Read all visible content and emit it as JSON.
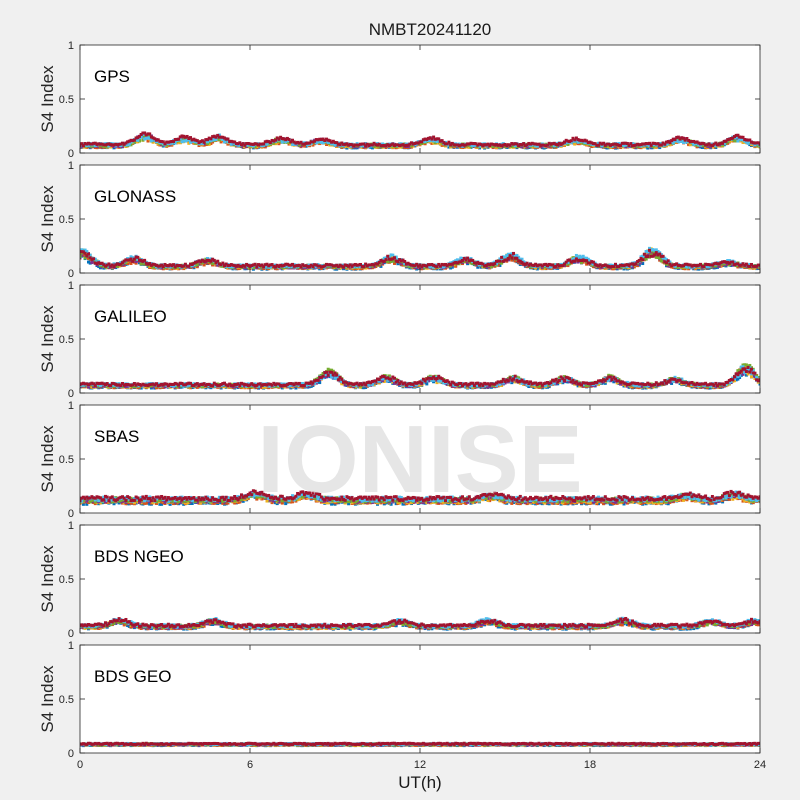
{
  "figure": {
    "title": "NMBT20241120",
    "xlabel": "UT(h)",
    "watermark": "IONISE",
    "background": "#f0f0f0",
    "axes_background": "#ffffff",
    "palette": [
      "#0072BD",
      "#D95319",
      "#EDB120",
      "#7E2F8E",
      "#77AC30",
      "#4DBEEE",
      "#A2142F"
    ]
  },
  "chart_data": [
    {
      "type": "scatter",
      "panel_label": "GPS",
      "ylabel": "S4 Index",
      "xlabel": "",
      "xlim": [
        0,
        24
      ],
      "ylim": [
        0,
        1
      ],
      "yticks": [
        0,
        0.5,
        1
      ],
      "ytick_labels": [
        "0",
        "0.5",
        "1"
      ],
      "xticks": [
        0,
        6,
        12,
        18,
        24
      ],
      "xtick_labels": [],
      "baseline": 0.07,
      "spread": 0.025,
      "peaks": [
        [
          2.3,
          0.17
        ],
        [
          3.7,
          0.14
        ],
        [
          4.9,
          0.15
        ],
        [
          7.1,
          0.13
        ],
        [
          8.5,
          0.12
        ],
        [
          12.4,
          0.13
        ],
        [
          17.5,
          0.12
        ],
        [
          21.2,
          0.13
        ],
        [
          23.2,
          0.15
        ]
      ],
      "grid": false
    },
    {
      "type": "scatter",
      "panel_label": "GLONASS",
      "ylabel": "S4 Index",
      "xlabel": "",
      "xlim": [
        0,
        24
      ],
      "ylim": [
        0,
        1
      ],
      "yticks": [
        0,
        0.5,
        1
      ],
      "ytick_labels": [
        "0",
        "0.5",
        "1"
      ],
      "xticks": [
        0,
        6,
        12,
        18,
        24
      ],
      "xtick_labels": [],
      "baseline": 0.06,
      "spread": 0.025,
      "peaks": [
        [
          0.1,
          0.2
        ],
        [
          1.9,
          0.14
        ],
        [
          4.5,
          0.12
        ],
        [
          11.0,
          0.15
        ],
        [
          13.6,
          0.13
        ],
        [
          15.2,
          0.17
        ],
        [
          17.6,
          0.15
        ],
        [
          20.2,
          0.22
        ],
        [
          22.9,
          0.1
        ]
      ],
      "grid": false
    },
    {
      "type": "scatter",
      "panel_label": "GALILEO",
      "ylabel": "S4 Index",
      "xlabel": "",
      "xlim": [
        0,
        24
      ],
      "ylim": [
        0,
        1
      ],
      "yticks": [
        0,
        0.5,
        1
      ],
      "ytick_labels": [
        "0",
        "0.5",
        "1"
      ],
      "xticks": [
        0,
        6,
        12,
        18,
        24
      ],
      "xtick_labels": [],
      "baseline": 0.07,
      "spread": 0.025,
      "peaks": [
        [
          8.8,
          0.21
        ],
        [
          10.8,
          0.15
        ],
        [
          12.5,
          0.15
        ],
        [
          15.3,
          0.14
        ],
        [
          17.1,
          0.14
        ],
        [
          18.7,
          0.15
        ],
        [
          21.0,
          0.13
        ],
        [
          23.5,
          0.26
        ]
      ],
      "grid": false
    },
    {
      "type": "scatter",
      "panel_label": "SBAS",
      "ylabel": "S4 Index",
      "xlabel": "",
      "xlim": [
        0,
        24
      ],
      "ylim": [
        0,
        1
      ],
      "yticks": [
        0,
        0.5,
        1
      ],
      "ytick_labels": [
        "0",
        "0.5",
        "1"
      ],
      "xticks": [
        0,
        6,
        12,
        18,
        24
      ],
      "xtick_labels": [],
      "baseline": 0.12,
      "spread": 0.04,
      "peaks": [
        [
          6.2,
          0.18
        ],
        [
          8.0,
          0.17
        ],
        [
          14.5,
          0.16
        ],
        [
          21.4,
          0.16
        ],
        [
          23.1,
          0.17
        ]
      ],
      "grid": false
    },
    {
      "type": "scatter",
      "panel_label": "BDS NGEO",
      "ylabel": "S4 Index",
      "xlabel": "",
      "xlim": [
        0,
        24
      ],
      "ylim": [
        0,
        1
      ],
      "yticks": [
        0,
        0.5,
        1
      ],
      "ytick_labels": [
        "0",
        "0.5",
        "1"
      ],
      "xticks": [
        0,
        6,
        12,
        18,
        24
      ],
      "xtick_labels": [],
      "baseline": 0.06,
      "spread": 0.025,
      "peaks": [
        [
          1.4,
          0.12
        ],
        [
          4.7,
          0.12
        ],
        [
          11.3,
          0.11
        ],
        [
          14.4,
          0.12
        ],
        [
          19.2,
          0.12
        ],
        [
          22.3,
          0.11
        ],
        [
          23.8,
          0.11
        ]
      ],
      "grid": false
    },
    {
      "type": "scatter",
      "panel_label": "BDS GEO",
      "ylabel": "S4 Index",
      "xlabel": "UT(h)",
      "xlim": [
        0,
        24
      ],
      "ylim": [
        0,
        1
      ],
      "yticks": [
        0,
        0.5,
        1
      ],
      "ytick_labels": [
        "0",
        "0.5",
        "1"
      ],
      "xticks": [
        0,
        6,
        12,
        18,
        24
      ],
      "xtick_labels": [
        "0",
        "6",
        "12",
        "18",
        "24"
      ],
      "baseline": 0.08,
      "spread": 0.012,
      "peaks": [],
      "grid": false
    }
  ]
}
